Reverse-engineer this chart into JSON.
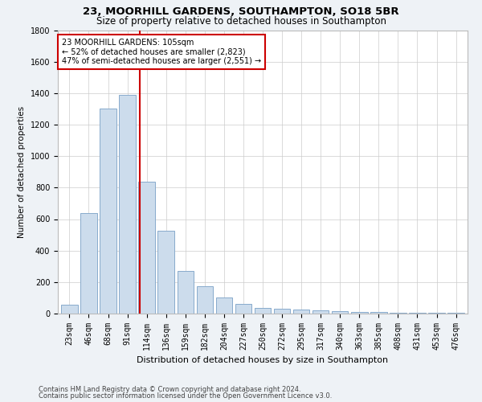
{
  "title1": "23, MOORHILL GARDENS, SOUTHAMPTON, SO18 5BR",
  "title2": "Size of property relative to detached houses in Southampton",
  "xlabel": "Distribution of detached houses by size in Southampton",
  "ylabel": "Number of detached properties",
  "categories": [
    "23sqm",
    "46sqm",
    "68sqm",
    "91sqm",
    "114sqm",
    "136sqm",
    "159sqm",
    "182sqm",
    "204sqm",
    "227sqm",
    "250sqm",
    "272sqm",
    "295sqm",
    "317sqm",
    "340sqm",
    "363sqm",
    "385sqm",
    "408sqm",
    "431sqm",
    "453sqm",
    "476sqm"
  ],
  "values": [
    55,
    640,
    1300,
    1390,
    840,
    525,
    270,
    175,
    100,
    62,
    35,
    30,
    25,
    20,
    15,
    10,
    8,
    5,
    5,
    3,
    3
  ],
  "bar_color": "#ccdcec",
  "bar_edge_color": "#88aacc",
  "vline_color": "#cc0000",
  "vline_x": 3.65,
  "annotation_text": "23 MOORHILL GARDENS: 105sqm\n← 52% of detached houses are smaller (2,823)\n47% of semi-detached houses are larger (2,551) →",
  "annotation_box_color": "#ffffff",
  "annotation_box_edge": "#cc0000",
  "ylim": [
    0,
    1800
  ],
  "yticks": [
    0,
    200,
    400,
    600,
    800,
    1000,
    1200,
    1400,
    1600,
    1800
  ],
  "footer1": "Contains HM Land Registry data © Crown copyright and database right 2024.",
  "footer2": "Contains public sector information licensed under the Open Government Licence v3.0.",
  "bg_color": "#eef2f6",
  "plot_bg_color": "#ffffff",
  "title1_fontsize": 9.5,
  "title2_fontsize": 8.5,
  "xlabel_fontsize": 8,
  "ylabel_fontsize": 7.5,
  "tick_fontsize": 7,
  "footer_fontsize": 6,
  "annotation_fontsize": 7
}
